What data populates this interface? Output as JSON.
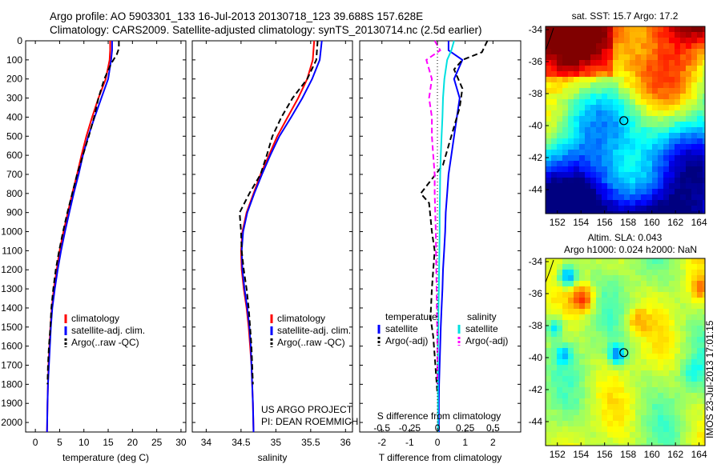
{
  "header": {
    "line1": "Argo profile: AO 5903301_133 16-Jul-2013 20130718_123 39.688S 157.628E",
    "line2": "Climatology: CARS2009. Satellite-adjusted climatology: synTS_20130714.nc (2.5d earlier)"
  },
  "colors": {
    "climatology": "#ff0000",
    "satellite": "#0000ff",
    "argo": "#000000",
    "salinity_satellite": "#00e0e0",
    "salinity_argo": "#ff00ff"
  },
  "chart_data": [
    {
      "id": "temperature",
      "type": "line",
      "xlabel": "temperature (deg C)",
      "ylabel": "",
      "xlim": [
        -2,
        31
      ],
      "ylim": [
        2050,
        0
      ],
      "xticks": [
        0,
        5,
        10,
        15,
        20,
        25,
        30
      ],
      "yticks": [
        0,
        100,
        200,
        300,
        400,
        500,
        600,
        700,
        800,
        900,
        1000,
        1100,
        1200,
        1300,
        1400,
        1500,
        1600,
        1700,
        1800,
        1900,
        2000
      ],
      "legend": [
        "climatology",
        "satellite-adj. clim.",
        "Argo(..raw -QC)"
      ],
      "series": [
        {
          "name": "climatology",
          "color": "#ff0000",
          "dash": "",
          "x": [
            15.4,
            15.4,
            15.3,
            14.5,
            13.0,
            11.7,
            10.5,
            9.5,
            8.6,
            7.6,
            6.7,
            5.8,
            5.0,
            4.4,
            3.8,
            3.4,
            3.1,
            2.9,
            2.7,
            2.6,
            2.5,
            2.4
          ],
          "y": [
            0,
            50,
            100,
            200,
            300,
            400,
            500,
            600,
            700,
            800,
            900,
            1000,
            1100,
            1200,
            1300,
            1400,
            1500,
            1600,
            1700,
            1800,
            1900,
            2050
          ]
        },
        {
          "name": "satellite-adj. clim.",
          "color": "#0000ff",
          "dash": "",
          "x": [
            15.8,
            15.8,
            15.6,
            15.0,
            13.6,
            12.2,
            10.9,
            9.8,
            8.9,
            7.9,
            7.0,
            6.1,
            5.3,
            4.6,
            4.0,
            3.5,
            3.2,
            3.0,
            2.8,
            2.6,
            2.5,
            2.4
          ],
          "y": [
            0,
            50,
            100,
            200,
            300,
            400,
            500,
            600,
            700,
            800,
            900,
            1000,
            1100,
            1200,
            1300,
            1400,
            1500,
            1600,
            1700,
            1800,
            1900,
            2050
          ]
        },
        {
          "name": "Argo(..raw -QC)",
          "color": "#000000",
          "dash": "7,4",
          "x": [
            17.2,
            17.2,
            16.8,
            15.6,
            14.2,
            13.0,
            12.1,
            11.0,
            9.8,
            8.6,
            7.6,
            6.6,
            5.7,
            4.9,
            4.2,
            3.7,
            3.3,
            3.1,
            2.8,
            2.6,
            2.5
          ],
          "y": [
            0,
            40,
            70,
            120,
            200,
            300,
            400,
            500,
            600,
            700,
            800,
            900,
            1000,
            1100,
            1200,
            1300,
            1400,
            1500,
            1600,
            1700,
            1800
          ]
        }
      ]
    },
    {
      "id": "salinity",
      "type": "line",
      "xlabel": "salinity",
      "ylabel": "",
      "xlim": [
        33.8,
        36.1
      ],
      "ylim": [
        2050,
        0
      ],
      "xticks": [
        34,
        34.5,
        35,
        35.5,
        36
      ],
      "legend": [
        "climatology",
        "satellite-adj. clim.",
        "Argo(..raw -QC)"
      ],
      "annotation": [
        "US ARGO PROJECT",
        "PI: DEAN ROEMMICH"
      ],
      "series": [
        {
          "name": "climatology",
          "color": "#ff0000",
          "dash": "",
          "x": [
            35.55,
            35.53,
            35.45,
            35.32,
            35.17,
            35.02,
            34.9,
            34.78,
            34.68,
            34.58,
            34.52,
            34.5,
            34.51,
            34.54,
            34.58,
            34.61,
            34.63,
            34.65,
            34.66,
            34.67,
            34.68
          ],
          "y": [
            0,
            100,
            200,
            300,
            400,
            500,
            600,
            700,
            800,
            900,
            1000,
            1100,
            1200,
            1300,
            1400,
            1500,
            1600,
            1700,
            1800,
            1900,
            2050
          ]
        },
        {
          "name": "satellite-adj. clim.",
          "color": "#0000ff",
          "dash": "",
          "x": [
            35.66,
            35.63,
            35.52,
            35.38,
            35.22,
            35.05,
            34.92,
            34.8,
            34.69,
            34.59,
            34.53,
            34.51,
            34.52,
            34.55,
            34.59,
            34.62,
            34.64,
            34.65,
            34.66,
            34.67,
            34.68
          ],
          "y": [
            0,
            100,
            200,
            300,
            400,
            500,
            600,
            700,
            800,
            900,
            1000,
            1100,
            1200,
            1300,
            1400,
            1500,
            1600,
            1700,
            1800,
            1900,
            2050
          ]
        },
        {
          "name": "Argo(..raw -QC)",
          "color": "#000000",
          "dash": "7,4",
          "x": [
            35.6,
            35.58,
            35.45,
            35.24,
            35.08,
            34.95,
            34.87,
            34.78,
            34.62,
            34.48,
            34.5,
            34.51,
            34.54,
            34.58,
            34.61,
            34.63,
            34.65,
            34.66,
            34.67
          ],
          "y": [
            0,
            100,
            200,
            300,
            400,
            500,
            600,
            700,
            800,
            900,
            1000,
            1100,
            1200,
            1300,
            1400,
            1500,
            1600,
            1700,
            1800
          ]
        }
      ]
    },
    {
      "id": "difference",
      "type": "line",
      "xlabel": "T difference from climatology",
      "top_label": "S difference from climatology",
      "xlim": [
        -2.8,
        3.0
      ],
      "ylim": [
        2050,
        0
      ],
      "xticks": [
        -2,
        -1,
        0,
        1,
        2
      ],
      "top_ticks": [
        "-0.5",
        "-0.25",
        "0",
        "0.25",
        "0.5"
      ],
      "top_tick_positions": [
        -2,
        -1,
        0,
        1,
        2
      ],
      "legend_title_left": "temperature",
      "legend_title_right": "salinity",
      "legend": [
        "satellite",
        "Argo(-adj)",
        "satellite",
        "Argo(-adj)"
      ],
      "series": [
        {
          "name": "T satellite",
          "color": "#0000ff",
          "dash": "",
          "x": [
            0.4,
            0.4,
            0.9,
            0.6,
            0.8,
            0.7,
            0.6,
            0.5,
            0.4,
            0.35,
            0.3,
            0.28,
            0.24,
            0.2,
            0.18,
            0.15,
            0.12,
            0.1,
            0.08,
            0.06,
            0.05,
            0.05
          ],
          "y": [
            0,
            50,
            100,
            200,
            300,
            400,
            500,
            600,
            700,
            800,
            900,
            1000,
            1100,
            1200,
            1300,
            1400,
            1500,
            1600,
            1700,
            1800,
            1900,
            2050
          ]
        },
        {
          "name": "T Argo(-adj)",
          "color": "#000000",
          "dash": "7,4",
          "x": [
            1.8,
            1.6,
            0.9,
            0.6,
            0.9,
            0.8,
            0.6,
            0.4,
            0.2,
            -0.6,
            -0.3,
            -0.2,
            -0.1,
            -0.15,
            -0.2,
            -0.25,
            -0.15,
            -0.1,
            -0.05,
            0.0
          ],
          "y": [
            0,
            60,
            100,
            150,
            250,
            350,
            450,
            550,
            650,
            800,
            850,
            1000,
            1100,
            1200,
            1300,
            1450,
            1550,
            1650,
            1750,
            1850
          ]
        },
        {
          "name": "S satellite",
          "color": "#00e0e0",
          "dash": "",
          "x": [
            0.6,
            0.5,
            0.35,
            0.25,
            0.2,
            0.18,
            0.15,
            0.12,
            0.1,
            0.09,
            0.08,
            0.08,
            0.07,
            0.06,
            0.05,
            0.04,
            0.03,
            0.02,
            0.02,
            0.02,
            0.02,
            0.02
          ],
          "y": [
            0,
            50,
            100,
            200,
            300,
            400,
            500,
            600,
            700,
            800,
            900,
            1000,
            1100,
            1200,
            1300,
            1400,
            1500,
            1600,
            1700,
            1800,
            1900,
            2050
          ]
        },
        {
          "name": "S Argo(-adj)",
          "color": "#ff00ff",
          "dash": "7,4",
          "x": [
            -0.1,
            0.1,
            -0.4,
            -0.2,
            -0.3,
            -0.2,
            -0.2,
            -0.15,
            -0.1,
            -0.1,
            -0.08,
            -0.06,
            -0.05,
            -0.04,
            -0.03,
            -0.02,
            -0.01,
            0.0,
            0.0
          ],
          "y": [
            0,
            50,
            100,
            200,
            300,
            400,
            500,
            600,
            700,
            800,
            900,
            1000,
            1100,
            1200,
            1300,
            1400,
            1500,
            1600,
            1800
          ]
        },
        {
          "name": "zero",
          "color": "#000000",
          "dash": "1,3",
          "x": [
            0,
            0
          ],
          "y": [
            0,
            2050
          ]
        }
      ]
    },
    {
      "id": "sst_map",
      "type": "heatmap",
      "title": "sat. SST: 15.7 Argo: 17.2",
      "xticks": [
        152,
        154,
        156,
        158,
        160,
        162,
        164
      ],
      "yticks": [
        -34,
        -36,
        -38,
        -40,
        -42,
        -44
      ],
      "xlim": [
        151,
        164.5
      ],
      "ylim": [
        -45.5,
        -33.8
      ],
      "marker": {
        "lon": 157.63,
        "lat": -39.69
      }
    },
    {
      "id": "sla_map",
      "type": "heatmap",
      "title_line1": "Altim. SLA: 0.043",
      "title_line2": "Argo h1000: 0.024 h2000: NaN",
      "xticks": [
        152,
        154,
        156,
        158,
        160,
        162,
        164
      ],
      "yticks": [
        -34,
        -36,
        -38,
        -40,
        -42,
        -44
      ],
      "xlim": [
        151,
        164.5
      ],
      "ylim": [
        -45.5,
        -33.8
      ],
      "marker": {
        "lon": 157.63,
        "lat": -39.69
      }
    }
  ],
  "footer": {
    "vertical_stamp": "IMOS 23-Jul-2013 17:01:15"
  }
}
